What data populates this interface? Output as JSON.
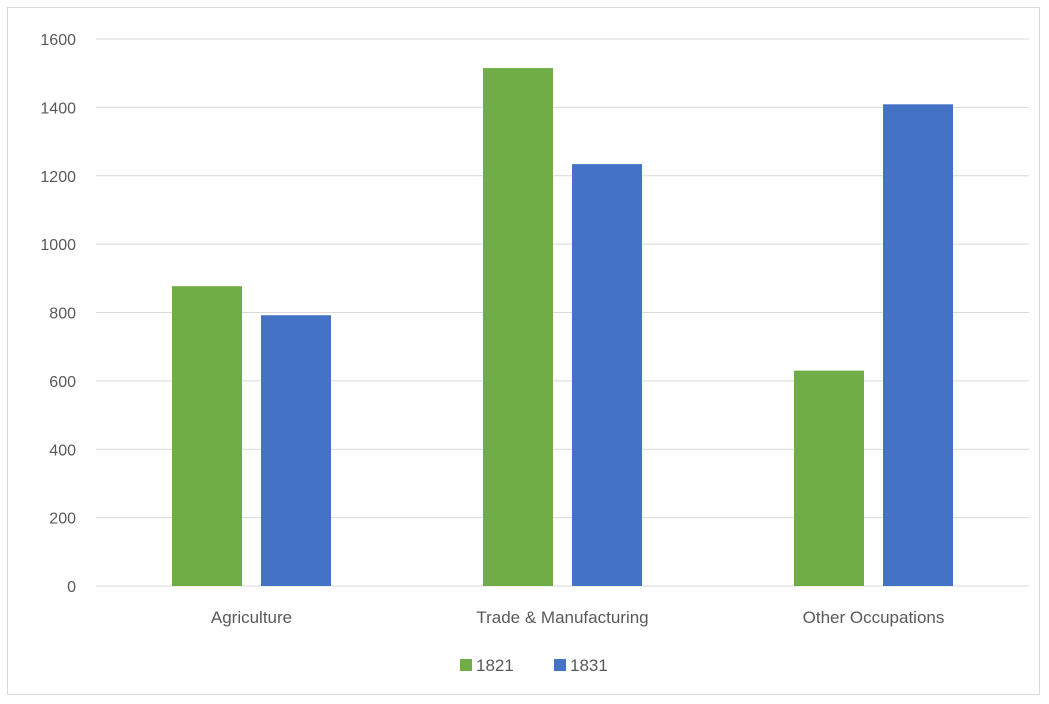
{
  "colors": {
    "series_1821": "#70ad47",
    "series_1831": "#4472c4",
    "gridline": "#d9d9d9",
    "text": "#595959"
  },
  "chart_data": {
    "type": "bar",
    "categories": [
      "Agriculture",
      "Trade & Manufacturing",
      "Other Occupations"
    ],
    "series": [
      {
        "name": "1821",
        "values": [
          877,
          1515,
          630
        ]
      },
      {
        "name": "1831",
        "values": [
          792,
          1234,
          1409
        ]
      }
    ],
    "ylim": [
      0,
      1600
    ],
    "yticks": [
      0,
      200,
      400,
      600,
      800,
      1000,
      1200,
      1400,
      1600
    ],
    "grid": true,
    "legend": "bottom"
  }
}
